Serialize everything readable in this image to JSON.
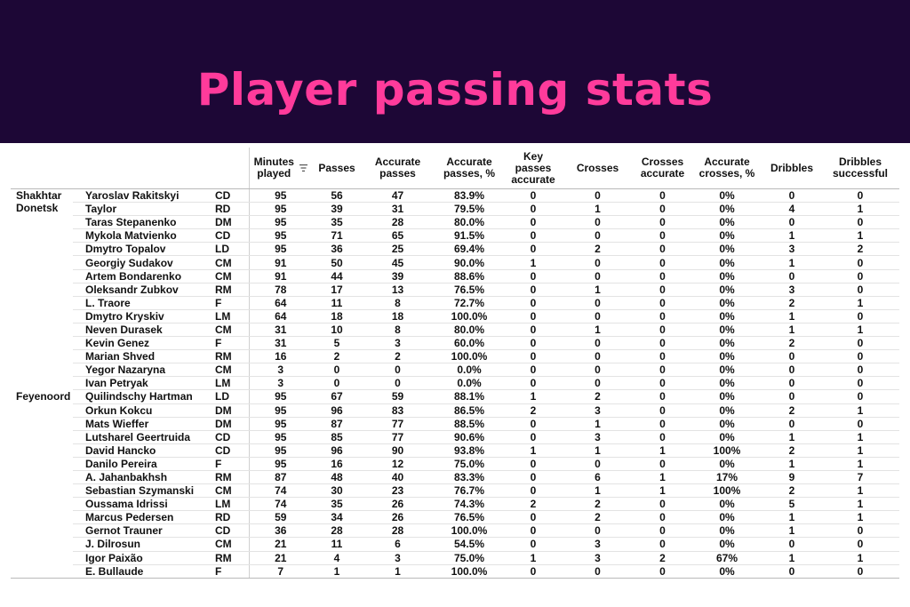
{
  "header": {
    "title": "Player passing stats"
  },
  "colors": {
    "banner_bg": "#1d0736",
    "title_color": "#ff3b9b"
  },
  "columns": {
    "minutes": [
      "Minutes",
      "played"
    ],
    "passes": "Passes",
    "accurate_passes": [
      "Accurate",
      "passes"
    ],
    "accurate_passes_pct": [
      "Accurate",
      "passes, %"
    ],
    "key_passes": [
      "Key",
      "passes",
      "accurate"
    ],
    "crosses": "Crosses",
    "crosses_accurate": [
      "Crosses",
      "accurate"
    ],
    "accurate_crosses_pct": [
      "Accurate",
      "crosses, %"
    ],
    "dribbles": "Dribbles",
    "dribbles_successful": [
      "Dribbles",
      "successful"
    ],
    "sort_icon": "sort-descending-icon"
  },
  "teams": [
    {
      "name_lines": [
        "Shakhtar",
        "Donetsk"
      ],
      "players": [
        [
          "Yaroslav Rakitskyi",
          "CD",
          "95",
          "56",
          "47",
          "83.9%",
          "0",
          "0",
          "0",
          "0%",
          "0",
          "0"
        ],
        [
          "Taylor",
          "RD",
          "95",
          "39",
          "31",
          "79.5%",
          "0",
          "1",
          "0",
          "0%",
          "4",
          "1"
        ],
        [
          "Taras Stepanenko",
          "DM",
          "95",
          "35",
          "28",
          "80.0%",
          "0",
          "0",
          "0",
          "0%",
          "0",
          "0"
        ],
        [
          "Mykola Matvienko",
          "CD",
          "95",
          "71",
          "65",
          "91.5%",
          "0",
          "0",
          "0",
          "0%",
          "1",
          "1"
        ],
        [
          "Dmytro Topalov",
          "LD",
          "95",
          "36",
          "25",
          "69.4%",
          "0",
          "2",
          "0",
          "0%",
          "3",
          "2"
        ],
        [
          "Georgiy Sudakov",
          "CM",
          "91",
          "50",
          "45",
          "90.0%",
          "1",
          "0",
          "0",
          "0%",
          "1",
          "0"
        ],
        [
          "Artem Bondarenko",
          "CM",
          "91",
          "44",
          "39",
          "88.6%",
          "0",
          "0",
          "0",
          "0%",
          "0",
          "0"
        ],
        [
          "Oleksandr Zubkov",
          "RM",
          "78",
          "17",
          "13",
          "76.5%",
          "0",
          "1",
          "0",
          "0%",
          "3",
          "0"
        ],
        [
          "L. Traore",
          "F",
          "64",
          "11",
          "8",
          "72.7%",
          "0",
          "0",
          "0",
          "0%",
          "2",
          "1"
        ],
        [
          "Dmytro Kryskiv",
          "LM",
          "64",
          "18",
          "18",
          "100.0%",
          "0",
          "0",
          "0",
          "0%",
          "1",
          "0"
        ],
        [
          "Neven Durasek",
          "CM",
          "31",
          "10",
          "8",
          "80.0%",
          "0",
          "1",
          "0",
          "0%",
          "1",
          "1"
        ],
        [
          "Kevin Genez",
          "F",
          "31",
          "5",
          "3",
          "60.0%",
          "0",
          "0",
          "0",
          "0%",
          "2",
          "0"
        ],
        [
          "Marian Shved",
          "RM",
          "16",
          "2",
          "2",
          "100.0%",
          "0",
          "0",
          "0",
          "0%",
          "0",
          "0"
        ],
        [
          "Yegor Nazaryna",
          "CM",
          "3",
          "0",
          "0",
          "0.0%",
          "0",
          "0",
          "0",
          "0%",
          "0",
          "0"
        ],
        [
          "Ivan Petryak",
          "LM",
          "3",
          "0",
          "0",
          "0.0%",
          "0",
          "0",
          "0",
          "0%",
          "0",
          "0"
        ]
      ]
    },
    {
      "name_lines": [
        "Feyenoord"
      ],
      "players": [
        [
          "Quilindschy Hartman",
          "LD",
          "95",
          "67",
          "59",
          "88.1%",
          "1",
          "2",
          "0",
          "0%",
          "0",
          "0"
        ],
        [
          "Orkun Kokcu",
          "DM",
          "95",
          "96",
          "83",
          "86.5%",
          "2",
          "3",
          "0",
          "0%",
          "2",
          "1"
        ],
        [
          "Mats Wieffer",
          "DM",
          "95",
          "87",
          "77",
          "88.5%",
          "0",
          "1",
          "0",
          "0%",
          "0",
          "0"
        ],
        [
          "Lutsharel Geertruida",
          "CD",
          "95",
          "85",
          "77",
          "90.6%",
          "0",
          "3",
          "0",
          "0%",
          "1",
          "1"
        ],
        [
          "David Hancko",
          "CD",
          "95",
          "96",
          "90",
          "93.8%",
          "1",
          "1",
          "1",
          "100%",
          "2",
          "1"
        ],
        [
          "Danilo Pereira",
          "F",
          "95",
          "16",
          "12",
          "75.0%",
          "0",
          "0",
          "0",
          "0%",
          "1",
          "1"
        ],
        [
          "A. Jahanbakhsh",
          "RM",
          "87",
          "48",
          "40",
          "83.3%",
          "0",
          "6",
          "1",
          "17%",
          "9",
          "7"
        ],
        [
          "Sebastian Szymanski",
          "CM",
          "74",
          "30",
          "23",
          "76.7%",
          "0",
          "1",
          "1",
          "100%",
          "2",
          "1"
        ],
        [
          "Oussama Idrissi",
          "LM",
          "74",
          "35",
          "26",
          "74.3%",
          "2",
          "2",
          "0",
          "0%",
          "5",
          "1"
        ],
        [
          "Marcus Pedersen",
          "RD",
          "59",
          "34",
          "26",
          "76.5%",
          "0",
          "2",
          "0",
          "0%",
          "1",
          "1"
        ],
        [
          "Gernot Trauner",
          "CD",
          "36",
          "28",
          "28",
          "100.0%",
          "0",
          "0",
          "0",
          "0%",
          "1",
          "0"
        ],
        [
          "J. Dilrosun",
          "CM",
          "21",
          "11",
          "6",
          "54.5%",
          "0",
          "3",
          "0",
          "0%",
          "0",
          "0"
        ],
        [
          "Igor Paixão",
          "RM",
          "21",
          "4",
          "3",
          "75.0%",
          "1",
          "3",
          "2",
          "67%",
          "1",
          "1"
        ],
        [
          "E. Bullaude",
          "F",
          "7",
          "1",
          "1",
          "100.0%",
          "0",
          "0",
          "0",
          "0%",
          "0",
          "0"
        ]
      ]
    }
  ]
}
